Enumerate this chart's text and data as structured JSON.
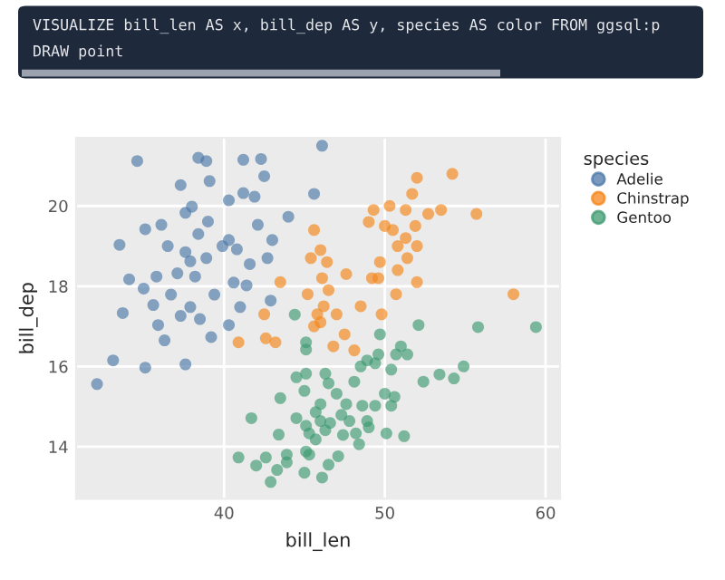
{
  "chart_data": {
    "type": "scatter",
    "xlabel": "bill_len",
    "ylabel": "bill_dep",
    "legend_title": "species",
    "annotations": [
      "VISUALIZE bill_len AS x, bill_dep AS y, species AS color FROM ggsql:p",
      "DRAW point"
    ],
    "xlim": [
      30.8,
      60.9
    ],
    "ylim": [
      12.7,
      21.7
    ],
    "xticks": [
      40,
      50,
      60
    ],
    "yticks": [
      14,
      16,
      18,
      20
    ],
    "grid": true,
    "legend": "right",
    "marker": "circle",
    "series": [
      {
        "name": "Adelie",
        "color": "#4c78a8",
        "x": [
          32.1,
          33.1,
          33.5,
          34.1,
          34.6,
          35.1,
          35.1,
          35.0,
          35.6,
          36.1,
          35.9,
          36.3,
          37.3,
          37.6,
          37.6,
          37.9,
          38.0,
          38.4,
          38.5,
          38.9,
          39.1,
          39.0,
          38.9,
          39.2,
          39.4,
          40.3,
          40.3,
          40.8,
          41.2,
          41.2,
          41.4,
          41.9,
          42.1,
          42.3,
          42.5,
          43.0,
          42.9,
          44.0,
          41.0,
          40.3,
          37.1,
          36.7,
          33.7,
          35.8,
          37.6,
          38.2,
          41.6,
          42.7,
          37.3,
          38.4,
          39.9,
          36.5,
          37.9,
          40.6,
          46.1,
          45.6
        ],
        "values": [
          15.56,
          16.15,
          19.03,
          18.17,
          21.12,
          19.42,
          15.97,
          17.94,
          17.53,
          19.53,
          17.03,
          16.65,
          20.52,
          19.83,
          16.05,
          18.62,
          19.98,
          21.2,
          17.18,
          21.12,
          20.62,
          19.61,
          18.7,
          16.73,
          17.79,
          19.15,
          20.14,
          18.92,
          21.15,
          20.32,
          18.02,
          20.23,
          19.53,
          21.17,
          20.74,
          19.15,
          17.64,
          19.73,
          17.48,
          17.03,
          18.32,
          17.79,
          17.33,
          18.24,
          18.85,
          18.24,
          18.55,
          18.7,
          17.26,
          19.3,
          19.0,
          19.0,
          17.48,
          18.09,
          21.5,
          20.3
        ]
      },
      {
        "name": "Chinstrap",
        "color": "#f58518",
        "x": [
          42.5,
          42.6,
          43.2,
          43.5,
          45.6,
          46.0,
          45.4,
          46.4,
          46.1,
          45.2,
          46.5,
          45.8,
          45.6,
          46.2,
          47.0,
          47.5,
          46.8,
          47.6,
          48.5,
          49.2,
          49.6,
          49.8,
          49.3,
          49.0,
          50.0,
          50.3,
          50.5,
          50.8,
          49.7,
          50.8,
          51.4,
          52.0,
          51.3,
          51.9,
          51.7,
          52.0,
          52.7,
          53.5,
          54.2,
          55.7,
          58.0,
          51.3,
          52.0,
          50.7,
          40.9,
          46.0,
          48.1
        ],
        "values": [
          17.3,
          16.7,
          16.6,
          18.1,
          19.4,
          18.9,
          18.7,
          18.6,
          18.2,
          17.8,
          17.9,
          17.3,
          17.0,
          17.5,
          17.3,
          16.8,
          16.5,
          18.3,
          17.5,
          18.2,
          18.2,
          17.3,
          19.9,
          19.6,
          19.5,
          20.0,
          19.4,
          19.0,
          18.6,
          18.4,
          18.7,
          19.0,
          19.9,
          19.5,
          20.3,
          20.7,
          19.8,
          19.9,
          20.8,
          19.8,
          17.8,
          19.2,
          18.1,
          17.8,
          16.6,
          17.1,
          16.4
        ]
      },
      {
        "name": "Gentoo",
        "color": "#3d9970",
        "x": [
          44.4,
          40.9,
          42.0,
          42.9,
          42.6,
          43.3,
          43.9,
          43.5,
          41.7,
          43.4,
          44.5,
          44.5,
          45.0,
          45.1,
          45.1,
          45.1,
          46.3,
          46.5,
          46.0,
          45.1,
          45.3,
          45.7,
          46.3,
          46.6,
          45.1,
          45.3,
          46.5,
          46.1,
          45.0,
          47.1,
          47.4,
          47.8,
          48.2,
          48.4,
          48.9,
          48.6,
          47.6,
          48.1,
          48.5,
          48.9,
          49.4,
          49.6,
          50.4,
          50.0,
          50.6,
          50.4,
          49.4,
          49.0,
          50.1,
          51.2,
          49.7,
          50.7,
          51.0,
          51.4,
          52.1,
          52.4,
          53.4,
          54.3,
          54.9,
          55.8,
          59.4,
          47.3,
          46.0,
          43.9,
          47.0,
          45.7
        ],
        "values": [
          17.29,
          13.73,
          13.53,
          13.12,
          13.73,
          13.42,
          13.61,
          15.21,
          14.71,
          14.3,
          14.71,
          15.73,
          15.39,
          15.82,
          16.42,
          16.6,
          15.82,
          15.58,
          15.06,
          14.52,
          14.33,
          14.18,
          14.41,
          14.59,
          13.88,
          13.8,
          13.55,
          13.23,
          13.35,
          13.76,
          14.29,
          14.64,
          14.33,
          14.06,
          14.64,
          15.02,
          15.06,
          15.62,
          16.0,
          16.15,
          16.08,
          16.3,
          15.92,
          15.32,
          15.24,
          15.02,
          15.02,
          14.48,
          14.33,
          14.26,
          16.8,
          16.3,
          16.5,
          16.3,
          17.03,
          15.62,
          15.8,
          15.7,
          16.0,
          16.98,
          16.98,
          14.79,
          14.64,
          13.8,
          15.32,
          14.86
        ]
      }
    ]
  }
}
